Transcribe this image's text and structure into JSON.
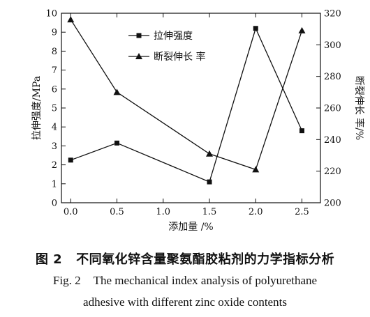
{
  "chart_data": {
    "type": "line",
    "x": [
      0.0,
      0.5,
      1.5,
      2.0,
      2.5
    ],
    "xlabel": "添加量 /%",
    "xlim": [
      -0.1,
      2.7
    ],
    "xticks": [
      "0.0",
      "0.5",
      "1.0",
      "1.5",
      "2.0",
      "2.5"
    ],
    "yleft": {
      "label": "拉伸强度/MPa",
      "lim": [
        0,
        10
      ],
      "ticks": [
        "0",
        "1",
        "2",
        "3",
        "4",
        "5",
        "6",
        "7",
        "8",
        "9",
        "10"
      ]
    },
    "yright": {
      "label": "断裂伸长 率/%",
      "lim": [
        200,
        320
      ],
      "ticks": [
        "200",
        "220",
        "240",
        "260",
        "280",
        "300",
        "320"
      ]
    },
    "series": [
      {
        "name": "拉伸强度",
        "axis": "left",
        "marker": "square",
        "values": [
          2.25,
          3.15,
          1.1,
          9.2,
          3.8
        ]
      },
      {
        "name": "断裂伸长 率",
        "axis": "right",
        "marker": "triangle",
        "values": [
          316,
          270,
          231,
          221,
          309
        ]
      }
    ],
    "legend_position": "top-center",
    "grid": false
  },
  "caption": {
    "zh_num": "图 2",
    "zh_text": "不同氧化锌含量聚氨酯胶粘剂的力学指标分析",
    "en_num": "Fig. 2",
    "en_line1": "The mechanical index analysis of polyurethane",
    "en_line2": "adhesive with different zinc oxide contents"
  }
}
